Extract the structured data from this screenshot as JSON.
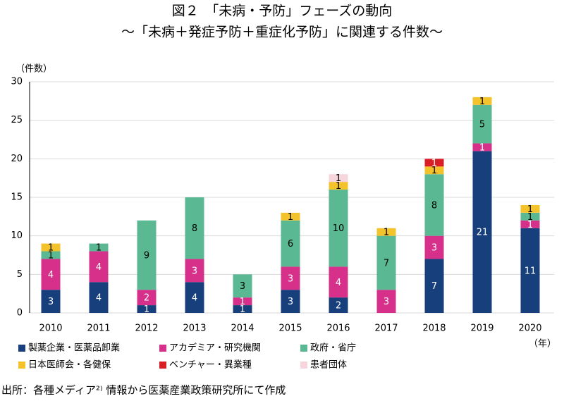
{
  "chart_data": {
    "type": "stacked-bar",
    "title": "図２　「未病・予防」フェーズの動向",
    "subtitle": "～「未病＋発症予防＋重症化予防」に関連する件数～",
    "y_label": "（件数）",
    "x_label": "（年）",
    "source": "出所：各種メディア²⁾ 情報から医薬産業政策研究所にて作成",
    "categories": [
      "2010",
      "2011",
      "2012",
      "2013",
      "2014",
      "2015",
      "2016",
      "2017",
      "2018",
      "2019",
      "2020"
    ],
    "series": [
      {
        "name": "製薬企業・医薬品卸業",
        "color": "#173f7c",
        "label_color": "#ffffff",
        "values": [
          3,
          4,
          1,
          4,
          1,
          3,
          2,
          null,
          7,
          21,
          11
        ]
      },
      {
        "name": "アカデミア・研究機関",
        "color": "#d6308a",
        "label_color": "#ffffff",
        "values": [
          4,
          4,
          2,
          3,
          1,
          3,
          4,
          3,
          3,
          1,
          1
        ]
      },
      {
        "name": "政府・省庁",
        "color": "#5ab893",
        "label_color": "#000000",
        "values": [
          1,
          1,
          9,
          8,
          3,
          6,
          10,
          7,
          8,
          5,
          1
        ]
      },
      {
        "name": "日本医師会・各健保",
        "color": "#f4c22b",
        "label_color": "#000000",
        "values": [
          1,
          null,
          null,
          null,
          null,
          1,
          1,
          1,
          1,
          1,
          1
        ]
      },
      {
        "name": "ベンチャー・異業種",
        "color": "#d91f26",
        "label_color": "#ffffff",
        "values": [
          null,
          null,
          null,
          null,
          null,
          null,
          null,
          null,
          1,
          null,
          null
        ]
      },
      {
        "name": "患者団体",
        "color": "#f7d5dd",
        "label_color": "#000000",
        "values": [
          null,
          null,
          null,
          null,
          null,
          null,
          1,
          null,
          null,
          null,
          null
        ]
      }
    ],
    "ylim": [
      0,
      30
    ],
    "yticks": [
      0,
      5,
      10,
      15,
      20,
      25,
      30
    ],
    "grid": true
  }
}
